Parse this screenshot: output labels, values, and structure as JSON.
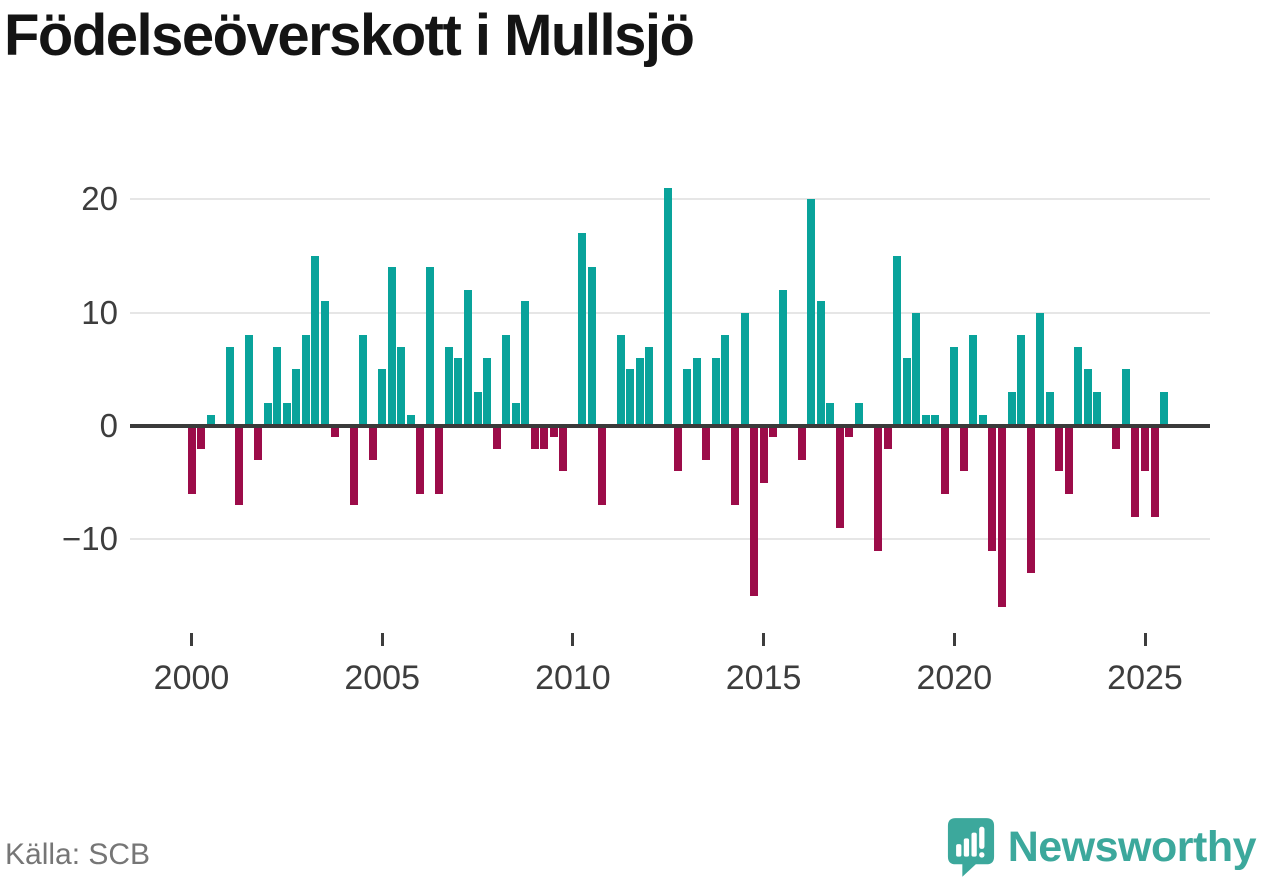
{
  "title": "Födelseöverskott i Mullsjö",
  "source": {
    "label": "Källa: SCB"
  },
  "brand": {
    "name": "Newsworthy"
  },
  "colors": {
    "positive": "#09a39b",
    "negative": "#9c0c49",
    "brand_teal": "#3ca89c",
    "title_text": "#141414",
    "axis_text": "#3d3d3d",
    "muted_text": "#767676",
    "gridline": "#e6e6e6",
    "zero_line": "#3a3a3a",
    "background": "#ffffff"
  },
  "chart_data": {
    "type": "bar",
    "title": "Födelseöverskott i Mullsjö",
    "frequency": "quarterly",
    "x_start": "2000-Q1",
    "x_end": "2025-Q3",
    "xlabel": "",
    "ylabel": "",
    "y_ticks": [
      20,
      10,
      0,
      -10
    ],
    "y_tick_labels": [
      "20",
      "10",
      "0",
      "−10"
    ],
    "x_tick_years": [
      2000,
      2005,
      2010,
      2015,
      2020,
      2025
    ],
    "x_tick_labels": [
      "2000",
      "2005",
      "2010",
      "2015",
      "2020",
      "2025"
    ],
    "ylim": [
      -17.5,
      22
    ],
    "grid": "horizontal",
    "legend": "none",
    "series": [
      {
        "name": "Födelseöverskott (kvartal)",
        "values_by_year": [
          {
            "year": 2000,
            "quarters": [
              -6,
              -2,
              1,
              0
            ]
          },
          {
            "year": 2001,
            "quarters": [
              7,
              -7,
              8,
              -3
            ]
          },
          {
            "year": 2002,
            "quarters": [
              2,
              7,
              2,
              5
            ]
          },
          {
            "year": 2003,
            "quarters": [
              8,
              15,
              11,
              -1
            ]
          },
          {
            "year": 2004,
            "quarters": [
              0,
              -7,
              8,
              -3
            ]
          },
          {
            "year": 2005,
            "quarters": [
              5,
              14,
              7,
              1
            ]
          },
          {
            "year": 2006,
            "quarters": [
              -6,
              14,
              -6,
              7
            ]
          },
          {
            "year": 2007,
            "quarters": [
              6,
              12,
              3,
              6
            ]
          },
          {
            "year": 2008,
            "quarters": [
              -2,
              8,
              2,
              11
            ]
          },
          {
            "year": 2009,
            "quarters": [
              -2,
              -2,
              -1,
              -4
            ]
          },
          {
            "year": 2010,
            "quarters": [
              0,
              17,
              14,
              -7
            ]
          },
          {
            "year": 2011,
            "quarters": [
              0,
              8,
              5,
              6
            ]
          },
          {
            "year": 2012,
            "quarters": [
              7,
              0,
              21,
              -4
            ]
          },
          {
            "year": 2013,
            "quarters": [
              5,
              6,
              -3,
              6
            ]
          },
          {
            "year": 2014,
            "quarters": [
              8,
              -7,
              10,
              -15
            ]
          },
          {
            "year": 2015,
            "quarters": [
              -5,
              -1,
              12,
              0
            ]
          },
          {
            "year": 2016,
            "quarters": [
              -3,
              20,
              11,
              2
            ]
          },
          {
            "year": 2017,
            "quarters": [
              -9,
              -1,
              2,
              0
            ]
          },
          {
            "year": 2018,
            "quarters": [
              -11,
              -2,
              15,
              6
            ]
          },
          {
            "year": 2019,
            "quarters": [
              10,
              1,
              1,
              -6
            ]
          },
          {
            "year": 2020,
            "quarters": [
              7,
              -4,
              8,
              1
            ]
          },
          {
            "year": 2021,
            "quarters": [
              -11,
              -16,
              3,
              8
            ]
          },
          {
            "year": 2022,
            "quarters": [
              -13,
              10,
              3,
              -4
            ]
          },
          {
            "year": 2023,
            "quarters": [
              -6,
              7,
              5,
              3
            ]
          },
          {
            "year": 2024,
            "quarters": [
              0,
              -2,
              5,
              -8
            ]
          },
          {
            "year": 2025,
            "quarters": [
              -4,
              -8,
              3
            ]
          }
        ]
      }
    ]
  }
}
